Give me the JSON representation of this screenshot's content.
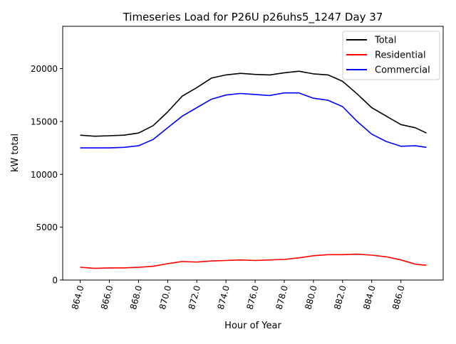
{
  "chart_data": {
    "type": "line",
    "title": "Timeseries Load for P26U p26uhs5_1247  Day 37",
    "xlabel": "Hour of Year",
    "ylabel": "kW total",
    "xlim": [
      862.8,
      888.9
    ],
    "ylim": [
      0,
      24000
    ],
    "xticks": [
      864,
      866,
      868,
      870,
      872,
      874,
      876,
      878,
      880,
      882,
      884,
      886
    ],
    "xtick_labels": [
      "864.0",
      "866.0",
      "868.0",
      "870.0",
      "872.0",
      "874.0",
      "876.0",
      "878.0",
      "880.0",
      "882.0",
      "884.0",
      "886.0"
    ],
    "yticks": [
      0,
      5000,
      10000,
      15000,
      20000
    ],
    "ytick_labels": [
      "0",
      "5000",
      "10000",
      "15000",
      "20000"
    ],
    "grid": false,
    "legend_position": "top-right",
    "x": [
      864,
      865,
      866,
      867,
      868,
      869,
      870,
      871,
      872,
      873,
      874,
      875,
      876,
      877,
      878,
      879,
      880,
      881,
      882,
      883,
      884,
      885,
      886,
      887,
      887.75
    ],
    "series": [
      {
        "name": "Total",
        "color": "#000000",
        "values": [
          13700,
          13600,
          13650,
          13700,
          13900,
          14600,
          15900,
          17400,
          18200,
          19100,
          19400,
          19550,
          19450,
          19400,
          19600,
          19750,
          19500,
          19400,
          18800,
          17600,
          16300,
          15500,
          14700,
          14400,
          13900
        ]
      },
      {
        "name": "Residential",
        "color": "#ff0000",
        "values": [
          1200,
          1100,
          1150,
          1150,
          1200,
          1300,
          1550,
          1750,
          1700,
          1800,
          1850,
          1900,
          1850,
          1900,
          1950,
          2100,
          2300,
          2400,
          2400,
          2450,
          2350,
          2200,
          1900,
          1500,
          1400
        ]
      },
      {
        "name": "Commercial",
        "color": "#0000ff",
        "values": [
          12500,
          12500,
          12500,
          12550,
          12700,
          13300,
          14400,
          15500,
          16300,
          17100,
          17500,
          17650,
          17550,
          17450,
          17700,
          17700,
          17200,
          17000,
          16400,
          15000,
          13800,
          13100,
          12650,
          12700,
          12550
        ]
      }
    ]
  }
}
